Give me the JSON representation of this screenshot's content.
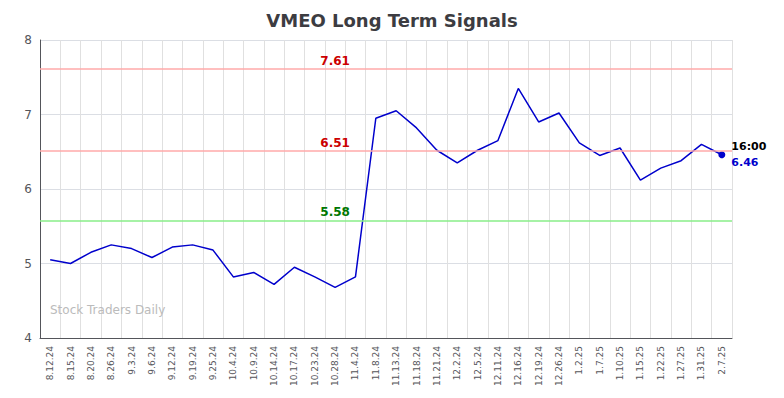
{
  "chart_data": {
    "type": "line",
    "title": "VMEO Long Term Signals",
    "categories": [
      "8.12.24",
      "8.15.24",
      "8.20.24",
      "8.26.24",
      "9.3.24",
      "9.6.24",
      "9.12.24",
      "9.19.24",
      "9.25.24",
      "10.4.24",
      "10.9.24",
      "10.14.24",
      "10.17.24",
      "10.23.24",
      "10.28.24",
      "11.4.24",
      "11.8.24",
      "11.13.24",
      "11.18.24",
      "11.21.24",
      "12.2.24",
      "12.5.24",
      "12.11.24",
      "12.16.24",
      "12.19.24",
      "12.26.24",
      "1.2.25",
      "1.7.25",
      "1.10.25",
      "1.15.25",
      "1.22.25",
      "1.27.25",
      "1.31.25",
      "2.7.25"
    ],
    "values": [
      5.05,
      5.0,
      5.15,
      5.25,
      5.2,
      5.08,
      5.22,
      5.25,
      5.18,
      4.82,
      4.88,
      4.72,
      4.95,
      4.82,
      4.68,
      4.82,
      6.95,
      7.05,
      6.82,
      6.52,
      6.35,
      6.52,
      6.65,
      7.35,
      6.9,
      7.02,
      6.62,
      6.45,
      6.55,
      6.12,
      6.28,
      6.38,
      6.6,
      6.46
    ],
    "color": "#0000cc",
    "ylim": [
      4,
      8
    ],
    "yticks": [
      4,
      5,
      6,
      7,
      8
    ],
    "grid": true,
    "reference_lines": [
      {
        "value": 7.61,
        "label": "7.61",
        "color": "#ffaaaa",
        "label_color": "#cc0000"
      },
      {
        "value": 6.51,
        "label": "6.51",
        "color": "#ffaaaa",
        "label_color": "#cc0000"
      },
      {
        "value": 5.58,
        "label": "5.58",
        "color": "#88ee88",
        "label_color": "#007700"
      }
    ],
    "end_marker_color": "#0000cc",
    "end_label": "16:00",
    "end_value_label": "6.46",
    "watermark": "Stock Traders Daily"
  }
}
